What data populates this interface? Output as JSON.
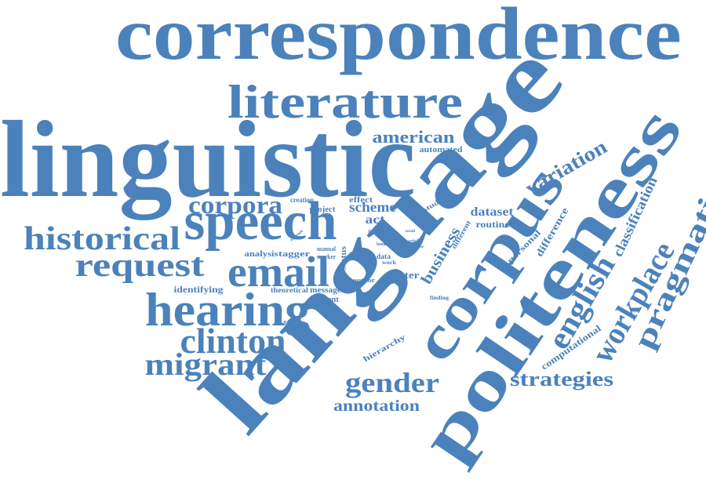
{
  "words": [
    "correspondence",
    "literature",
    "linguistic",
    "language",
    "politeness",
    "corpus",
    "speech",
    "historical",
    "request",
    "email",
    "hearing",
    "clinton",
    "migrant",
    "corpora",
    "american",
    "automated",
    "variation",
    "english",
    "workplace",
    "pragmatic",
    "classification",
    "computational",
    "strategies",
    "gender",
    "annotation",
    "business",
    "dataset",
    "routine",
    "scheme",
    "act",
    "effect",
    "project",
    "creation",
    "analysis",
    "tagger",
    "manual",
    "marker",
    "status",
    "message",
    "theoretical",
    "identifying",
    "present",
    "challenge",
    "hierarchy",
    "letter",
    "report",
    "author",
    "finding",
    "data",
    "work",
    "study",
    "difference",
    "personal",
    "different",
    "paper",
    "look",
    "circle",
    "result",
    "article",
    "issue",
    "subset"
  ]
}
